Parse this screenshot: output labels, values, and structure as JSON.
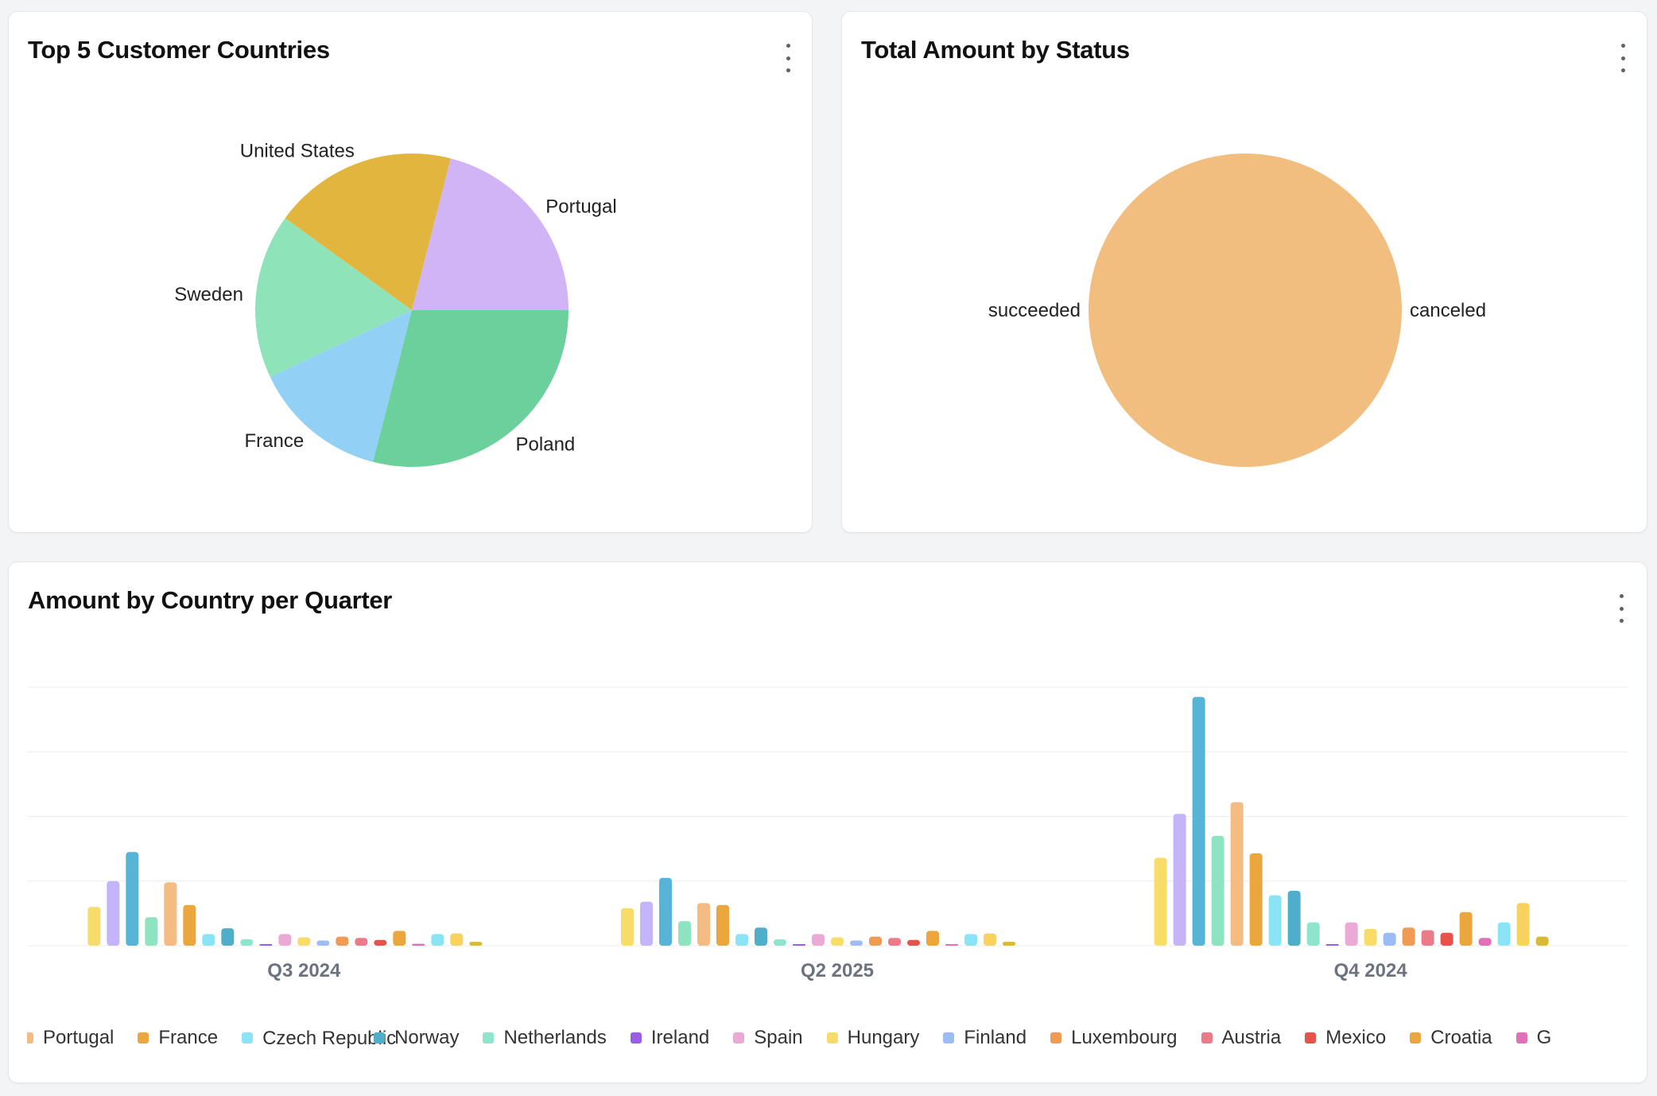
{
  "cards": {
    "countries": {
      "title": "Top 5 Customer Countries"
    },
    "status": {
      "title": "Total Amount by Status"
    },
    "quarter": {
      "title": "Amount by Country per Quarter"
    }
  },
  "chart_data": [
    {
      "type": "pie",
      "title": "Top 5 Customer Countries",
      "slices": [
        {
          "label": "Poland",
          "value": 29,
          "color": "#6bd09c"
        },
        {
          "label": "France",
          "value": 14,
          "color": "#93d0f6"
        },
        {
          "label": "Sweden",
          "value": 17,
          "color": "#8ee4b8"
        },
        {
          "label": "United States",
          "value": 19,
          "color": "#e2b63e"
        },
        {
          "label": "Portugal",
          "value": 21,
          "color": "#d1b4f6"
        }
      ]
    },
    {
      "type": "pie",
      "title": "Total Amount by Status",
      "slices": [
        {
          "label": "canceled",
          "value": 0.001,
          "color": "#f2be80"
        },
        {
          "label": "succeeded",
          "value": 99.999,
          "color": "#f2be80"
        }
      ]
    },
    {
      "type": "bar",
      "title": "Amount by Country per Quarter",
      "categories": [
        "Q3 2024",
        "Q2 2025",
        "Q4 2024"
      ],
      "ylim": [
        0,
        4
      ],
      "grid": true,
      "legend": "bottom",
      "series": [
        {
          "name": "",
          "color": "#f7dc6a",
          "values": [
            0.6,
            0.58,
            1.36
          ]
        },
        {
          "name": "",
          "color": "#c4b5fa",
          "values": [
            1.0,
            0.68,
            2.04
          ]
        },
        {
          "name": "",
          "color": "#57b4d6",
          "values": [
            1.45,
            1.05,
            3.85
          ]
        },
        {
          "name": "",
          "color": "#8ee4c0",
          "values": [
            0.44,
            0.38,
            1.7
          ]
        },
        {
          "name": "Portugal",
          "color": "#f4bc82",
          "values": [
            0.98,
            0.66,
            2.22
          ]
        },
        {
          "name": "France",
          "color": "#eba73d",
          "values": [
            0.63,
            0.63,
            1.43
          ]
        },
        {
          "name": "Czech Republic",
          "color": "#8be4f6",
          "values": [
            0.18,
            0.18,
            0.78
          ]
        },
        {
          "name": "Norway",
          "color": "#4fafcb",
          "values": [
            0.27,
            0.28,
            0.85
          ]
        },
        {
          "name": "Netherlands",
          "color": "#8ee4cc",
          "values": [
            0.1,
            0.1,
            0.36
          ]
        },
        {
          "name": "Ireland",
          "color": "#9b5de5",
          "values": [
            0.01,
            0.01,
            0.02
          ]
        },
        {
          "name": "Spain",
          "color": "#ebaad3",
          "values": [
            0.18,
            0.18,
            0.36
          ]
        },
        {
          "name": "Hungary",
          "color": "#f7dc6a",
          "values": [
            0.13,
            0.13,
            0.26
          ]
        },
        {
          "name": "Finland",
          "color": "#9cbcf6",
          "values": [
            0.08,
            0.08,
            0.2
          ]
        },
        {
          "name": "Luxembourg",
          "color": "#ef9b54",
          "values": [
            0.14,
            0.14,
            0.28
          ]
        },
        {
          "name": "Austria",
          "color": "#ec7b89",
          "values": [
            0.12,
            0.12,
            0.24
          ]
        },
        {
          "name": "Mexico",
          "color": "#e5534b",
          "values": [
            0.09,
            0.09,
            0.2
          ]
        },
        {
          "name": "Croatia",
          "color": "#eba73d",
          "values": [
            0.23,
            0.23,
            0.52
          ]
        },
        {
          "name": "G",
          "color": "#e270b9",
          "values": [
            0.03,
            0.02,
            0.12
          ]
        },
        {
          "name": "",
          "color": "#8be4f6",
          "values": [
            0.18,
            0.18,
            0.36
          ]
        },
        {
          "name": "",
          "color": "#f7d25e",
          "values": [
            0.19,
            0.19,
            0.66
          ]
        },
        {
          "name": "",
          "color": "#d9b93a",
          "values": [
            0.06,
            0.06,
            0.14
          ]
        }
      ]
    }
  ]
}
